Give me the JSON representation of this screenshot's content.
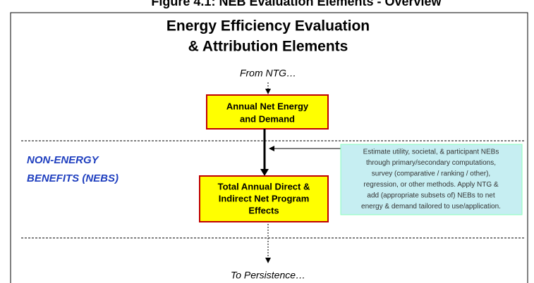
{
  "figure_title": "Figure 4.1: NEB Evaluation Elements - Overview",
  "heading": [
    "Energy Efficiency Evaluation",
    "& Attribution Elements"
  ],
  "from": "From NTG…",
  "box1": [
    "Annual Net Energy",
    "and Demand"
  ],
  "side_label": [
    "NON-ENERGY",
    "BENEFITS (NEBS)"
  ],
  "note": [
    "Estimate utility, societal, & participant NEBs",
    "through primary/secondary computations,",
    "survey (comparative / ranking / other),",
    "regression, or other methods.  Apply NTG &",
    "add (appropriate subsets of) NEBs to net",
    "energy & demand tailored to use/application."
  ],
  "box2": [
    "Total Annual Direct &",
    "Indirect Net Program",
    "Effects"
  ],
  "to": "To Persistence…"
}
